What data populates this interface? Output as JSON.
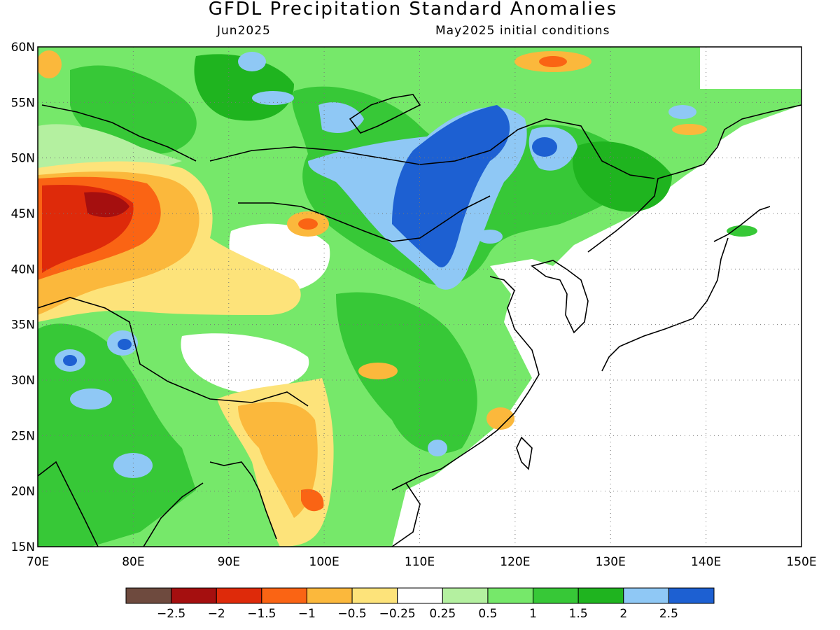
{
  "title": "GFDL Precipitation Standard Anomalies",
  "subtitle_left": "Jun2025",
  "subtitle_right": "May2025 initial conditions",
  "map": {
    "lon_range": [
      70,
      150
    ],
    "lat_range": [
      15,
      60
    ],
    "lon_ticks": [
      "70E",
      "80E",
      "90E",
      "100E",
      "110E",
      "120E",
      "130E",
      "140E",
      "150E"
    ],
    "lat_ticks": [
      "15N",
      "20N",
      "25N",
      "30N",
      "35N",
      "40N",
      "45N",
      "50N",
      "55N",
      "60N"
    ],
    "grid": "dotted"
  },
  "legend": {
    "colors": [
      "#6e4a3e",
      "#a50f0f",
      "#de2a0a",
      "#fa6414",
      "#fbb83c",
      "#fde37a",
      "#ffffff",
      "#b4f0a0",
      "#76e86a",
      "#37c837",
      "#1fb41f",
      "#8fc8f5",
      "#1d60d2"
    ],
    "labels": [
      "-2.5",
      "-2",
      "-1.5",
      "-1",
      "-0.5",
      "-0.25",
      "0.25",
      "0.5",
      "1",
      "1.5",
      "2",
      "2.5"
    ]
  }
}
